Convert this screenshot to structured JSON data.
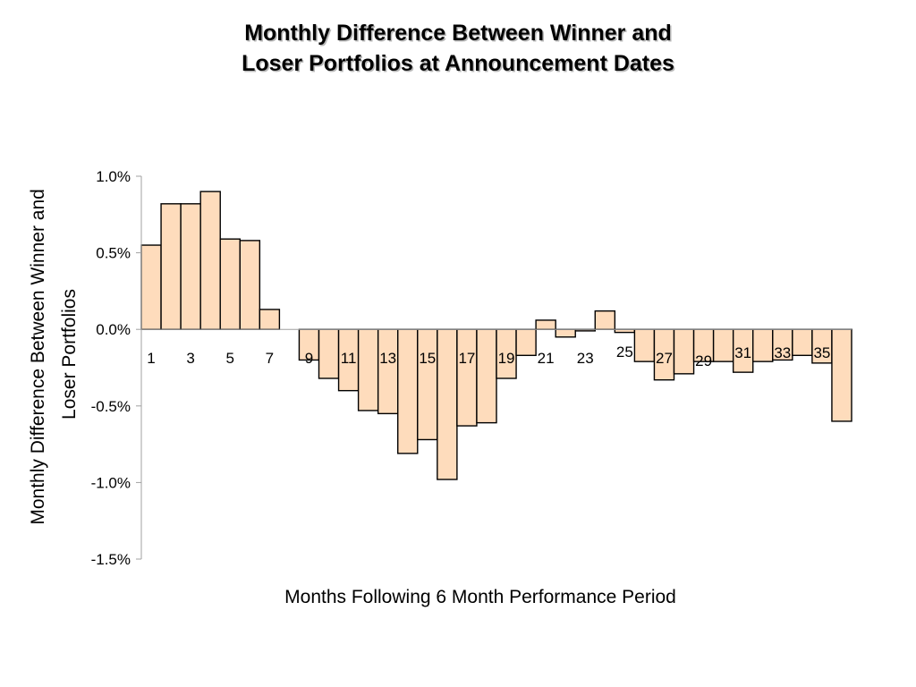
{
  "chart_data": {
    "type": "bar",
    "title_lines": [
      "Monthly Difference Between Winner and",
      "Loser Portfolios at Announcement Dates"
    ],
    "xlabel": "Months Following 6 Month Performance Period",
    "ylabel_lines": [
      "Monthly Difference Between Winner and",
      "Loser Portfolios"
    ],
    "ylim": [
      -1.5,
      1.0
    ],
    "y_ticks": [
      "1.0%",
      "0.5%",
      "0.0%",
      "-0.5%",
      "-1.0%",
      "-1.5%"
    ],
    "y_tick_values": [
      1.0,
      0.5,
      0.0,
      -0.5,
      -1.0,
      -1.5
    ],
    "x_tick_labels": [
      "1",
      "3",
      "5",
      "7",
      "9",
      "11",
      "13",
      "15",
      "17",
      "19",
      "21",
      "23",
      "25",
      "27",
      "29",
      "31",
      "33",
      "35"
    ],
    "categories": [
      "1",
      "2",
      "3",
      "4",
      "5",
      "6",
      "7",
      "8",
      "9",
      "10",
      "11",
      "12",
      "13",
      "14",
      "15",
      "16",
      "17",
      "18",
      "19",
      "20",
      "21",
      "22",
      "23",
      "24",
      "25",
      "26",
      "27",
      "28",
      "29",
      "30",
      "31",
      "32",
      "33",
      "34",
      "35",
      "36"
    ],
    "values": [
      0.55,
      0.82,
      0.82,
      0.9,
      0.59,
      0.58,
      0.13,
      0.0,
      -0.2,
      -0.32,
      -0.4,
      -0.53,
      -0.55,
      -0.81,
      -0.72,
      -0.98,
      -0.63,
      -0.61,
      -0.32,
      -0.17,
      0.06,
      -0.05,
      -0.01,
      0.12,
      -0.02,
      -0.21,
      -0.33,
      -0.29,
      -0.21,
      -0.21,
      -0.28,
      -0.21,
      -0.2,
      -0.17,
      -0.22,
      -0.6
    ],
    "bar_fill": "#fedcbc",
    "bar_stroke": "#000000",
    "grid": false,
    "legend": "none"
  }
}
